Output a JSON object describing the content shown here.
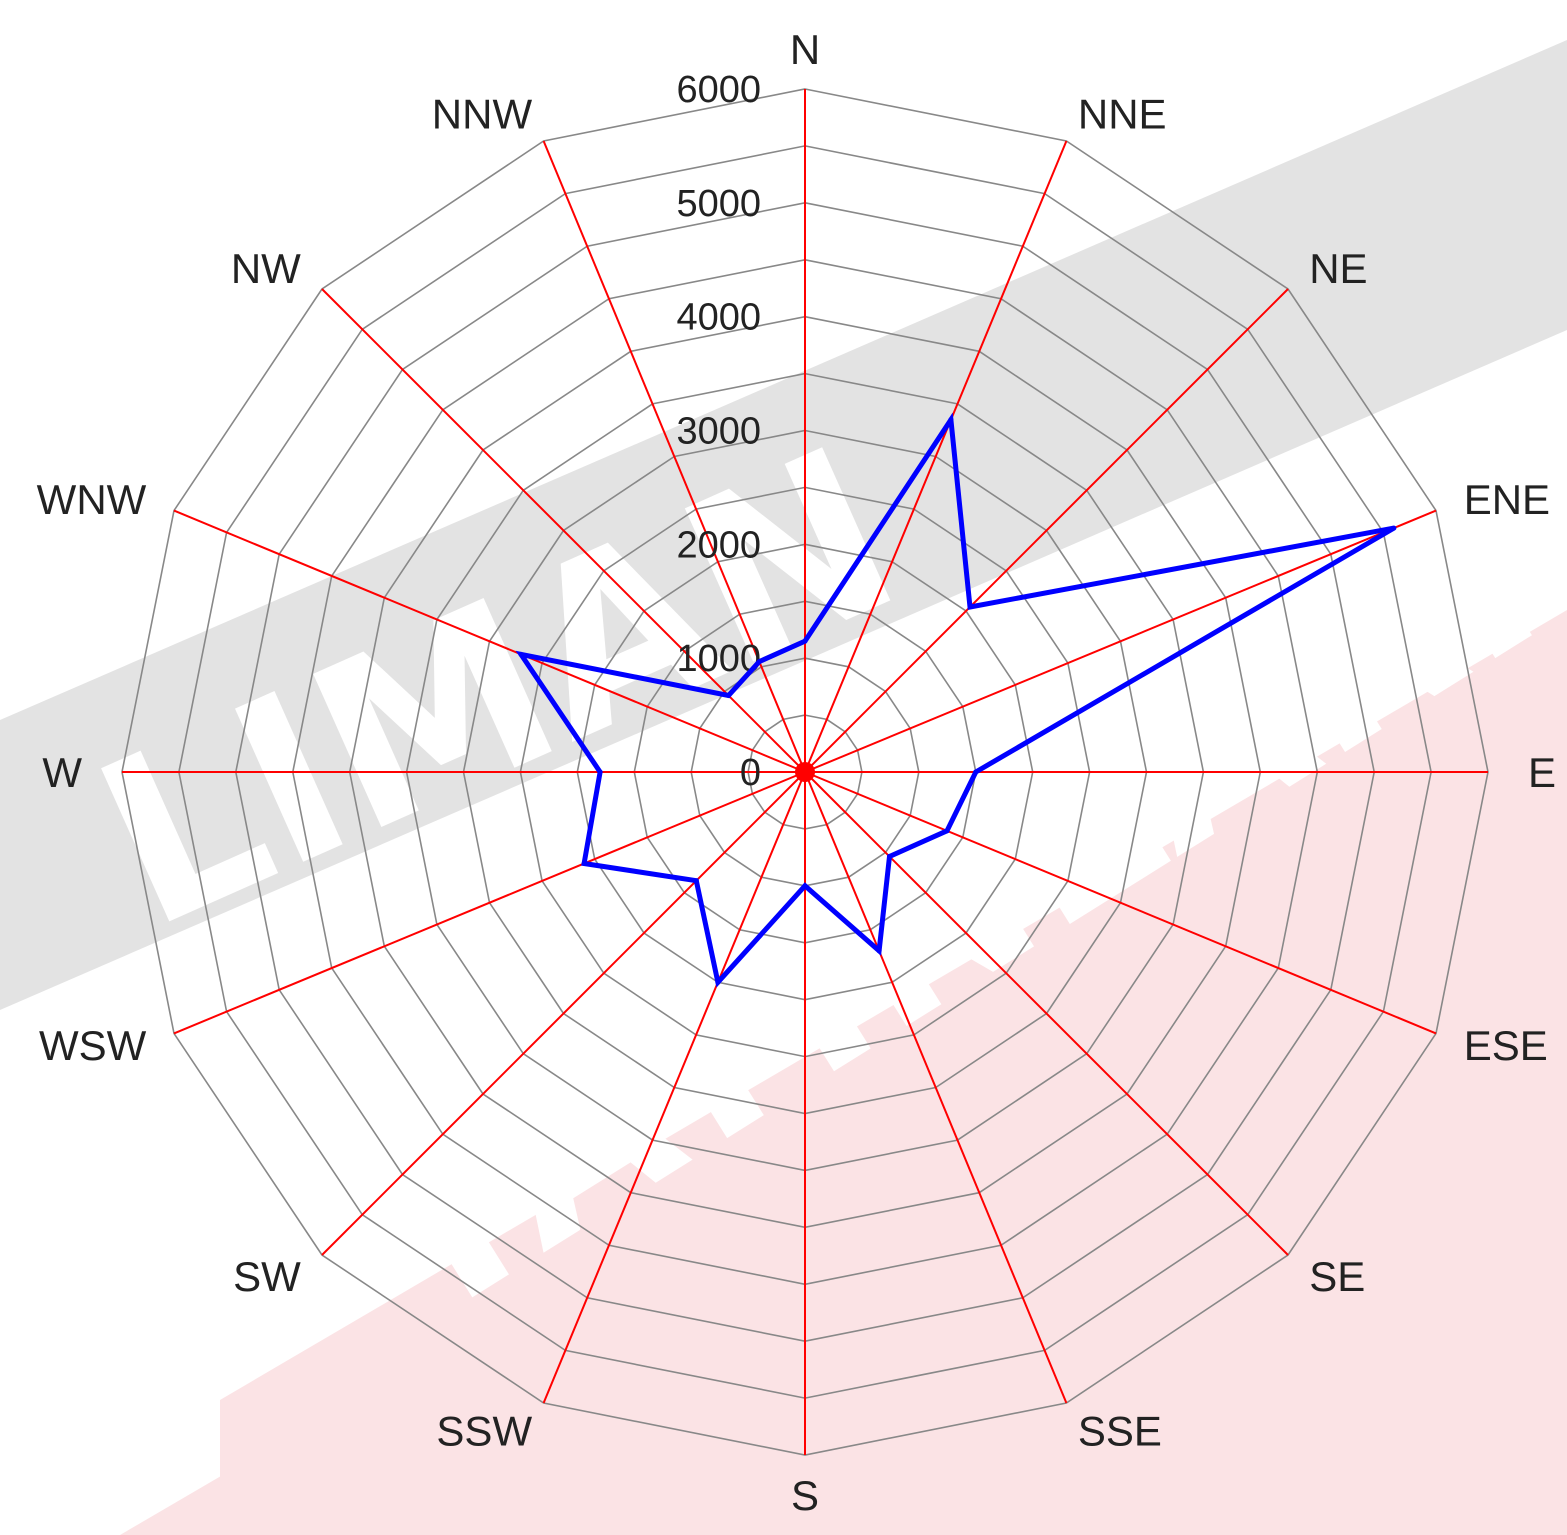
{
  "chart_data": {
    "type": "radar",
    "directions": [
      "N",
      "NNE",
      "NE",
      "ENE",
      "E",
      "ESE",
      "SE",
      "SSE",
      "S",
      "SSW",
      "SW",
      "WSW",
      "W",
      "WNW",
      "NW",
      "NNW"
    ],
    "series": [
      {
        "values": [
          1150,
          3350,
          2050,
          5600,
          1500,
          1350,
          1050,
          1700,
          1000,
          2000,
          1350,
          2100,
          1800,
          2700,
          950,
          1050
        ]
      }
    ],
    "radial_ticks": [
      "0",
      "1000",
      "2000",
      "3000",
      "4000",
      "5000",
      "6000"
    ],
    "rmax": 6000,
    "grid_step": 500,
    "grid": true,
    "colors": {
      "series": "#0000ff",
      "spokes": "#ff0000",
      "grid": "#888888",
      "center_dot": "#ff0000"
    }
  },
  "watermark": {
    "line1": "LIMAN",
    "line2": "YAYINLARI",
    "colors": {
      "gray_band": "#e3e3e3",
      "red_band": "#fbe3e5"
    }
  }
}
